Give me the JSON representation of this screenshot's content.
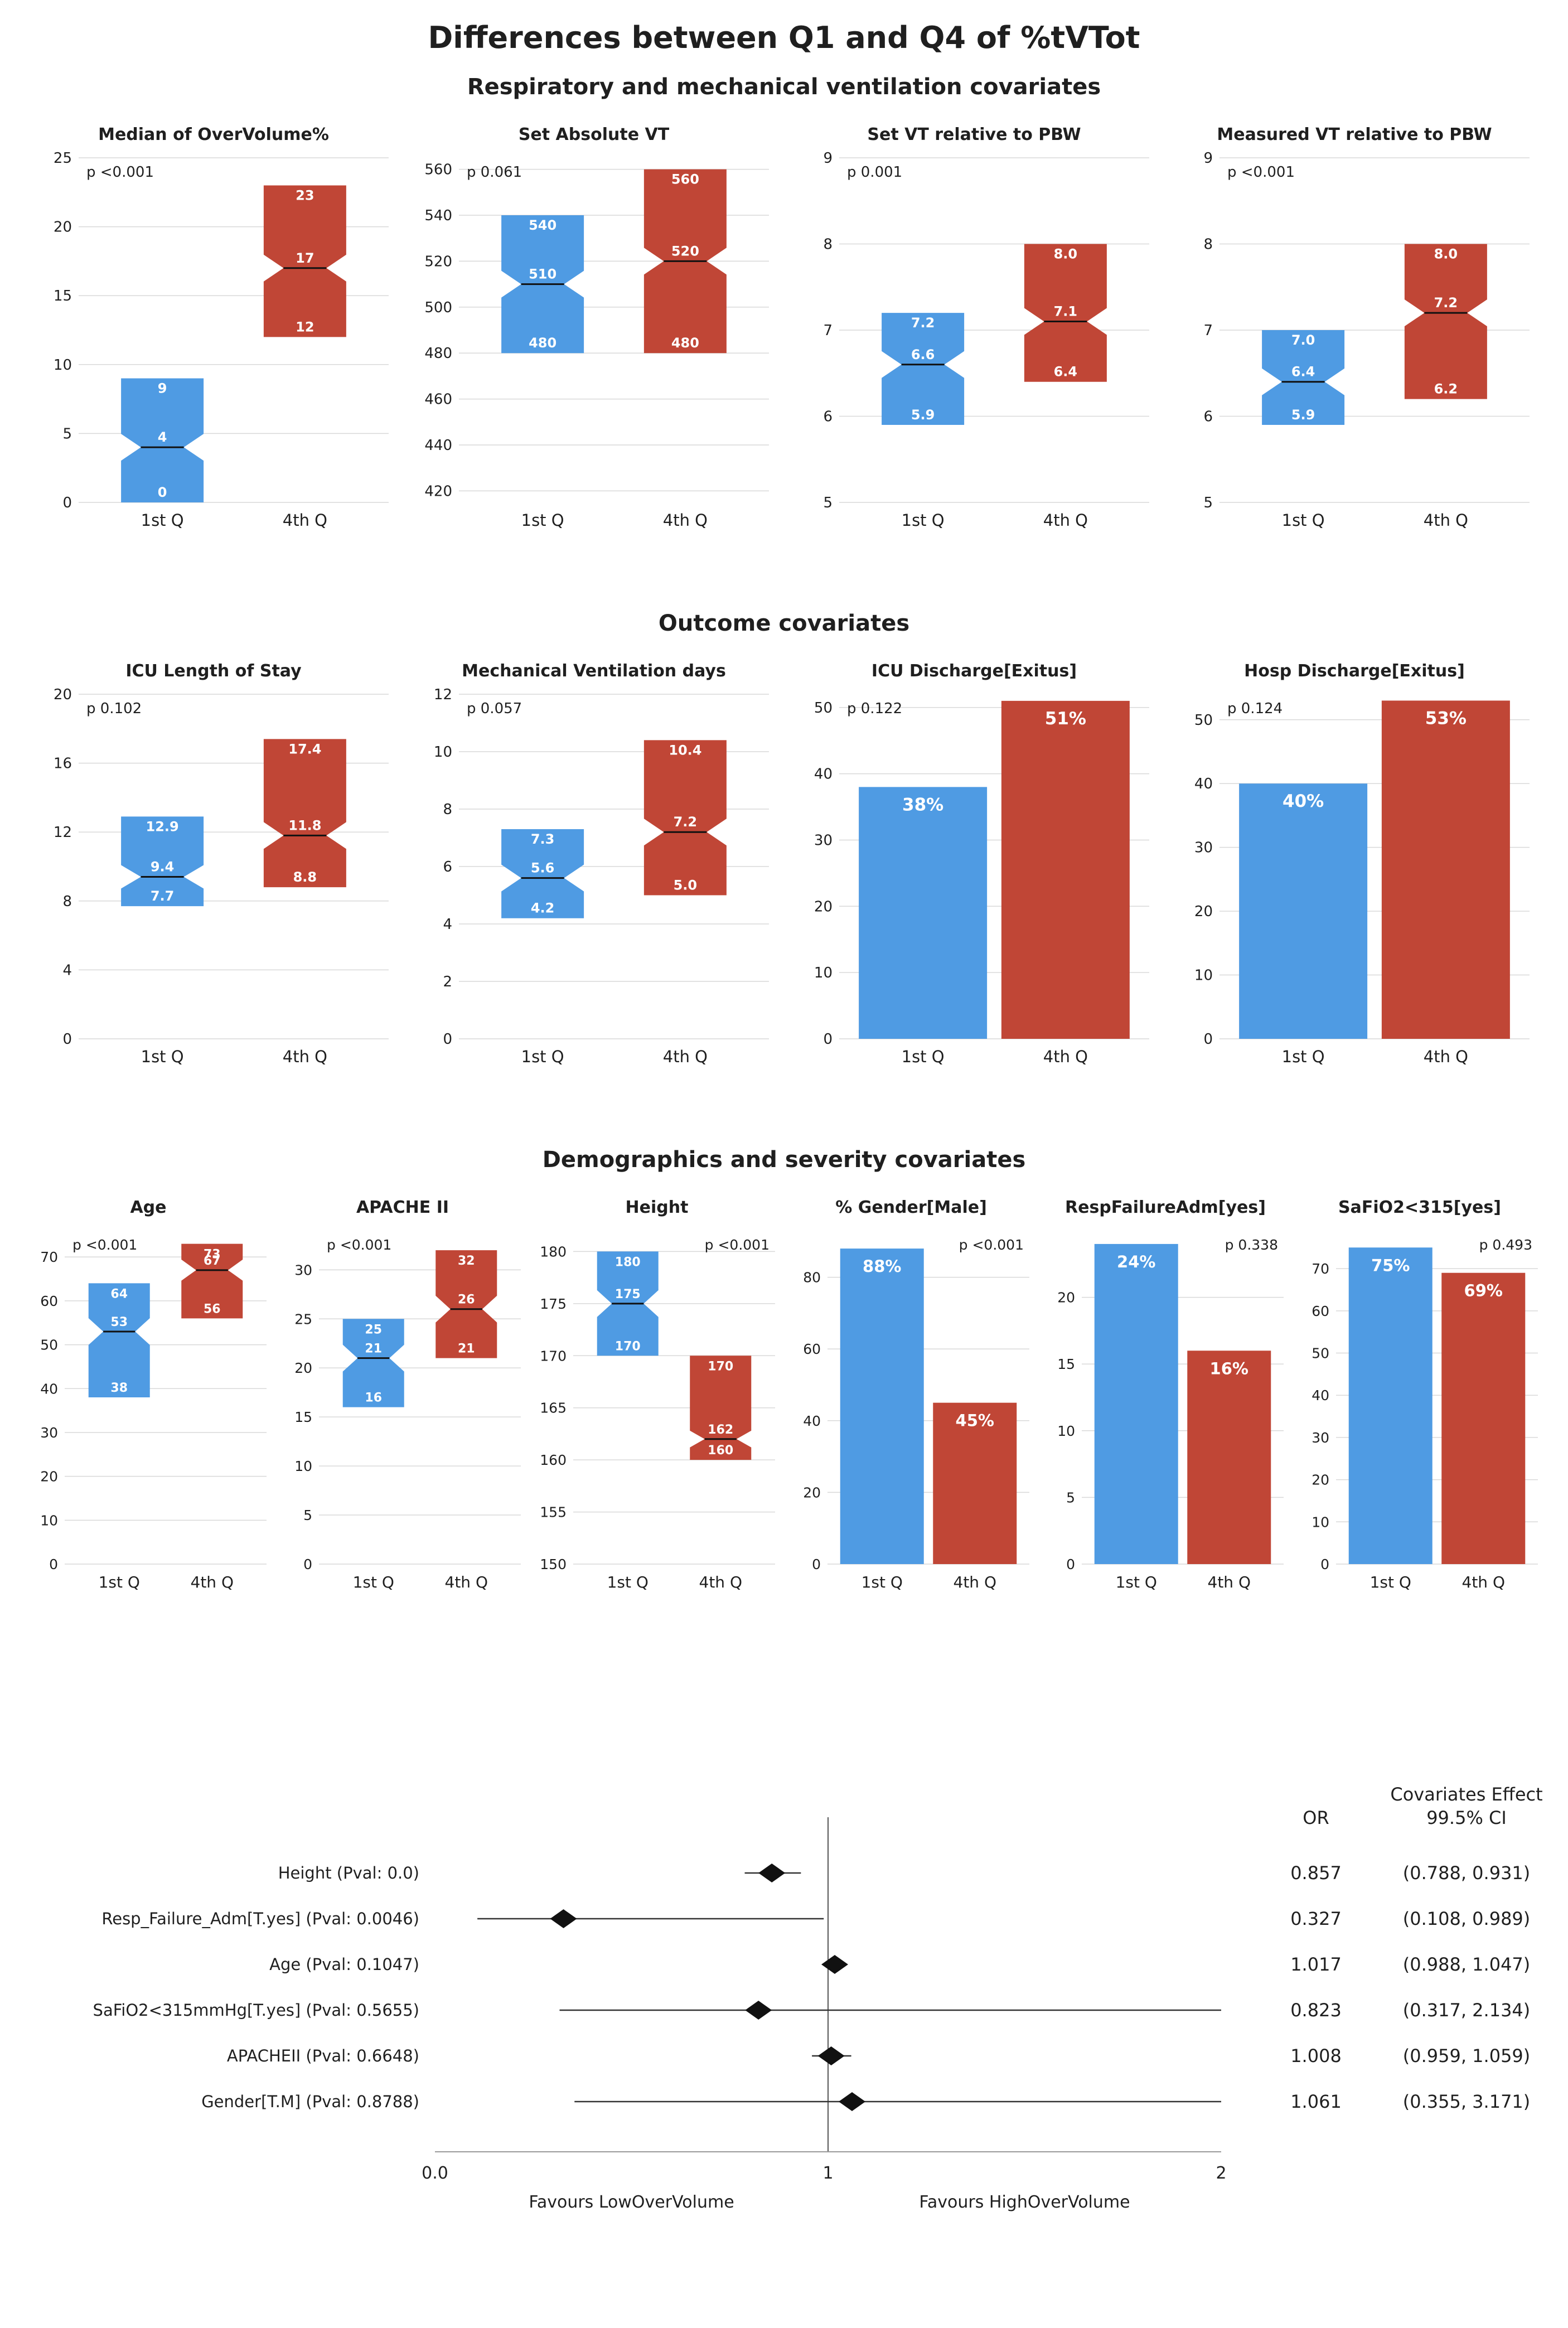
{
  "figure_title": "Differences between Q1 and Q4 of %tVTot",
  "colors": {
    "q1": "#4F9BE3",
    "q4": "#C04636",
    "grid": "#d9d9d9",
    "text": "#1f1f1f",
    "box_label": "#ffffff",
    "median_line": "#111111",
    "diamond": "#111111"
  },
  "chart_data": {
    "sections": [
      {
        "title": "Respiratory and mechanical ventilation covariates",
        "size": "wide",
        "panels": [
          {
            "type": "box",
            "title": "Median of OverVolume%",
            "p": "p <0.001",
            "p_pos": "left",
            "ylim": [
              0,
              25
            ],
            "yticks": [
              0,
              5,
              10,
              15,
              20,
              25
            ],
            "categories": [
              "1st Q",
              "4th Q"
            ],
            "boxes": [
              {
                "group": "1st Q",
                "low": 0,
                "median": 4,
                "high": 9,
                "low_label": "0",
                "median_label": "4",
                "high_label": "9"
              },
              {
                "group": "4th Q",
                "low": 12,
                "median": 17,
                "high": 23,
                "low_label": "12",
                "median_label": "17",
                "high_label": "23"
              }
            ]
          },
          {
            "type": "box",
            "title": "Set Absolute VT",
            "p": "p 0.061",
            "p_pos": "left",
            "ylim": [
              415,
              565
            ],
            "yticks": [
              420,
              440,
              460,
              480,
              500,
              520,
              540,
              560
            ],
            "categories": [
              "1st Q",
              "4th Q"
            ],
            "boxes": [
              {
                "group": "1st Q",
                "low": 480,
                "median": 510,
                "high": 540,
                "low_label": "480",
                "median_label": "510",
                "high_label": "540"
              },
              {
                "group": "4th Q",
                "low": 480,
                "median": 520,
                "high": 560,
                "low_label": "480",
                "median_label": "520",
                "high_label": "560"
              }
            ]
          },
          {
            "type": "box",
            "title": "Set VT relative to PBW",
            "p": "p 0.001",
            "p_pos": "left",
            "ylim": [
              5,
              9
            ],
            "yticks": [
              5,
              6,
              7,
              8,
              9
            ],
            "categories": [
              "1st Q",
              "4th Q"
            ],
            "boxes": [
              {
                "group": "1st Q",
                "low": 5.9,
                "median": 6.6,
                "high": 7.2,
                "low_label": "5.9",
                "median_label": "6.6",
                "high_label": "7.2"
              },
              {
                "group": "4th Q",
                "low": 6.4,
                "median": 7.1,
                "high": 8.0,
                "low_label": "6.4",
                "median_label": "7.1",
                "high_label": "8.0"
              }
            ]
          },
          {
            "type": "box",
            "title": "Measured VT relative to PBW",
            "p": "p <0.001",
            "p_pos": "left",
            "ylim": [
              5,
              9
            ],
            "yticks": [
              5,
              6,
              7,
              8,
              9
            ],
            "categories": [
              "1st Q",
              "4th Q"
            ],
            "boxes": [
              {
                "group": "1st Q",
                "low": 5.9,
                "median": 6.4,
                "high": 7.0,
                "low_label": "5.9",
                "median_label": "6.4",
                "high_label": "7.0"
              },
              {
                "group": "4th Q",
                "low": 6.2,
                "median": 7.2,
                "high": 8.0,
                "low_label": "6.2",
                "median_label": "7.2",
                "high_label": "8.0"
              }
            ]
          }
        ]
      },
      {
        "title": "Outcome covariates",
        "size": "wide",
        "panels": [
          {
            "type": "box",
            "title": "ICU Length of Stay",
            "p": "p 0.102",
            "p_pos": "left",
            "ylim": [
              0,
              20
            ],
            "yticks": [
              0,
              4,
              8,
              12,
              16,
              20
            ],
            "categories": [
              "1st Q",
              "4th Q"
            ],
            "boxes": [
              {
                "group": "1st Q",
                "low": 7.7,
                "median": 9.4,
                "high": 12.9,
                "low_label": "7.7",
                "median_label": "9.4",
                "high_label": "12.9"
              },
              {
                "group": "4th Q",
                "low": 8.8,
                "median": 11.8,
                "high": 17.4,
                "low_label": "8.8",
                "median_label": "11.8",
                "high_label": "17.4"
              }
            ]
          },
          {
            "type": "box",
            "title": "Mechanical Ventilation days",
            "p": "p 0.057",
            "p_pos": "left",
            "ylim": [
              0,
              12
            ],
            "yticks": [
              0,
              2,
              4,
              6,
              8,
              10,
              12
            ],
            "categories": [
              "1st Q",
              "4th Q"
            ],
            "boxes": [
              {
                "group": "1st Q",
                "low": 4.2,
                "median": 5.6,
                "high": 7.3,
                "low_label": "4.2",
                "median_label": "5.6",
                "high_label": "7.3"
              },
              {
                "group": "4th Q",
                "low": 5.0,
                "median": 7.2,
                "high": 10.4,
                "low_label": "5.0",
                "median_label": "7.2",
                "high_label": "10.4"
              }
            ]
          },
          {
            "type": "bar",
            "title": "ICU Discharge[Exitus]",
            "p": "p 0.122",
            "p_pos": "left",
            "ylim": [
              0,
              52
            ],
            "yticks": [
              0,
              10,
              20,
              30,
              40,
              50
            ],
            "categories": [
              "1st Q",
              "4th Q"
            ],
            "bars": [
              {
                "group": "1st Q",
                "value": 38,
                "label": "38%"
              },
              {
                "group": "4th Q",
                "value": 51,
                "label": "51%"
              }
            ]
          },
          {
            "type": "bar",
            "title": "Hosp Discharge[Exitus]",
            "p": "p 0.124",
            "p_pos": "left",
            "ylim": [
              0,
              54
            ],
            "yticks": [
              0,
              10,
              20,
              30,
              40,
              50
            ],
            "categories": [
              "1st Q",
              "4th Q"
            ],
            "bars": [
              {
                "group": "1st Q",
                "value": 40,
                "label": "40%"
              },
              {
                "group": "4th Q",
                "value": 53,
                "label": "53%"
              }
            ]
          }
        ]
      },
      {
        "title": "Demographics and severity covariates",
        "size": "small",
        "panels": [
          {
            "type": "box",
            "title": "Age",
            "p": "p <0.001",
            "p_pos": "left",
            "ylim": [
              0,
              76
            ],
            "yticks": [
              0,
              10,
              20,
              30,
              40,
              50,
              60,
              70
            ],
            "categories": [
              "1st Q",
              "4th Q"
            ],
            "boxes": [
              {
                "group": "1st Q",
                "low": 38,
                "median": 53,
                "high": 64,
                "low_label": "38",
                "median_label": "53",
                "high_label": "64"
              },
              {
                "group": "4th Q",
                "low": 56,
                "median": 67,
                "high": 73,
                "low_label": "56",
                "median_label": "67",
                "high_label": "73"
              }
            ]
          },
          {
            "type": "box",
            "title": "APACHE II",
            "p": "p <0.001",
            "p_pos": "left",
            "ylim": [
              0,
              34
            ],
            "yticks": [
              0,
              5,
              10,
              15,
              20,
              25,
              30
            ],
            "categories": [
              "1st Q",
              "4th Q"
            ],
            "boxes": [
              {
                "group": "1st Q",
                "low": 16,
                "median": 21,
                "high": 25,
                "low_label": "16",
                "median_label": "21",
                "high_label": "25"
              },
              {
                "group": "4th Q",
                "low": 21,
                "median": 26,
                "high": 32,
                "low_label": "21",
                "median_label": "26",
                "high_label": "32"
              }
            ]
          },
          {
            "type": "box",
            "title": "Height",
            "p": "p <0.001",
            "p_pos": "right",
            "ylim": [
              150,
              182
            ],
            "yticks": [
              150,
              155,
              160,
              165,
              170,
              175,
              180
            ],
            "categories": [
              "1st Q",
              "4th Q"
            ],
            "boxes": [
              {
                "group": "1st Q",
                "low": 170,
                "median": 175,
                "high": 180,
                "low_label": "170",
                "median_label": "175",
                "high_label": "180"
              },
              {
                "group": "4th Q",
                "low": 160,
                "median": 162,
                "high": 170,
                "low_label": "160",
                "median_label": "162",
                "high_label": "170"
              }
            ]
          },
          {
            "type": "bar",
            "title": "% Gender[Male]",
            "p": "p <0.001",
            "p_pos": "right",
            "ylim": [
              0,
              93
            ],
            "yticks": [
              0,
              20,
              40,
              60,
              80
            ],
            "categories": [
              "1st Q",
              "4th Q"
            ],
            "bars": [
              {
                "group": "1st Q",
                "value": 88,
                "label": "88%"
              },
              {
                "group": "4th Q",
                "value": 45,
                "label": "45%"
              }
            ]
          },
          {
            "type": "bar",
            "title": "RespFailureAdm[yes]",
            "p": "p 0.338",
            "p_pos": "right",
            "ylim": [
              0,
              25
            ],
            "yticks": [
              0,
              5,
              10,
              15,
              20
            ],
            "categories": [
              "1st Q",
              "4th Q"
            ],
            "bars": [
              {
                "group": "1st Q",
                "value": 24,
                "label": "24%"
              },
              {
                "group": "4th Q",
                "value": 16,
                "label": "16%"
              }
            ]
          },
          {
            "type": "bar",
            "title": "SaFiO2<315[yes]",
            "p": "p 0.493",
            "p_pos": "right",
            "ylim": [
              0,
              79
            ],
            "yticks": [
              0,
              10,
              20,
              30,
              40,
              50,
              60,
              70
            ],
            "categories": [
              "1st Q",
              "4th Q"
            ],
            "bars": [
              {
                "group": "1st Q",
                "value": 75,
                "label": "75%"
              },
              {
                "group": "4th Q",
                "value": 69,
                "label": "69%"
              }
            ]
          }
        ]
      }
    ],
    "forest": {
      "type": "scatter",
      "headers": {
        "or": "OR",
        "effect_line1": "Covariates Effect",
        "effect_line2": "99.5% CI"
      },
      "xlim": [
        0,
        2
      ],
      "xticks": [
        {
          "value": 0,
          "label": "0.0"
        },
        {
          "value": 1,
          "label": "1"
        },
        {
          "value": 2,
          "label": "2"
        }
      ],
      "axis_labels": {
        "left": "Favours LowOverVolume",
        "right": "Favours HighOverVolume"
      },
      "rows": [
        {
          "label": "Height (Pval: 0.0)",
          "or": 0.857,
          "ci_low": 0.788,
          "ci_high": 0.931,
          "or_text": "0.857",
          "ci_text": "(0.788, 0.931)"
        },
        {
          "label": "Resp_Failure_Adm[T.yes] (Pval: 0.0046)",
          "or": 0.327,
          "ci_low": 0.108,
          "ci_high": 0.989,
          "or_text": "0.327",
          "ci_text": "(0.108, 0.989)"
        },
        {
          "label": "Age (Pval: 0.1047)",
          "or": 1.017,
          "ci_low": 0.988,
          "ci_high": 1.047,
          "or_text": "1.017",
          "ci_text": "(0.988, 1.047)"
        },
        {
          "label": "SaFiO2<315mmHg[T.yes] (Pval: 0.5655)",
          "or": 0.823,
          "ci_low": 0.317,
          "ci_high": 2.134,
          "or_text": "0.823",
          "ci_text": "(0.317, 2.134)"
        },
        {
          "label": "APACHEII (Pval: 0.6648)",
          "or": 1.008,
          "ci_low": 0.959,
          "ci_high": 1.059,
          "or_text": "1.008",
          "ci_text": "(0.959, 1.059)"
        },
        {
          "label": "Gender[T.M] (Pval: 0.8788)",
          "or": 1.061,
          "ci_low": 0.355,
          "ci_high": 3.171,
          "or_text": "1.061",
          "ci_text": "(0.355, 3.171)"
        }
      ]
    }
  }
}
